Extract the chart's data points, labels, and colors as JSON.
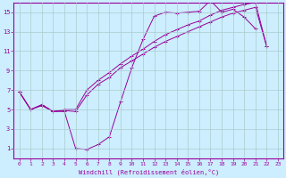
{
  "bg_color": "#cceeff",
  "grid_color": "#aacccc",
  "line_color": "#990099",
  "xlabel": "Windchill (Refroidissement éolien,°C)",
  "xlim": [
    -0.5,
    23.5
  ],
  "ylim": [
    0,
    16
  ],
  "xticks": [
    0,
    1,
    2,
    3,
    4,
    5,
    6,
    7,
    8,
    9,
    10,
    11,
    12,
    13,
    14,
    15,
    16,
    17,
    18,
    19,
    20,
    21,
    22,
    23
  ],
  "yticks": [
    1,
    3,
    5,
    7,
    9,
    11,
    13,
    15
  ],
  "line1_x": [
    0,
    1,
    2,
    3,
    4,
    5,
    6,
    7,
    8,
    9,
    10,
    11,
    12,
    13,
    14,
    15,
    16,
    17,
    18,
    19,
    20,
    21
  ],
  "line1_y": [
    6.8,
    5.0,
    5.5,
    4.8,
    4.8,
    1.0,
    0.9,
    1.4,
    2.2,
    5.8,
    9.3,
    12.2,
    14.6,
    15.0,
    14.9,
    15.0,
    15.1,
    16.2,
    15.0,
    15.3,
    14.5,
    13.3
  ],
  "line2_x": [
    0,
    1,
    2,
    3,
    4,
    5,
    6,
    7,
    8,
    9,
    10,
    11,
    12,
    13,
    14,
    15,
    16,
    17,
    18,
    19,
    20,
    21,
    22
  ],
  "line2_y": [
    6.8,
    5.0,
    5.4,
    4.8,
    4.9,
    4.8,
    6.5,
    7.6,
    8.3,
    9.3,
    10.0,
    10.7,
    11.4,
    12.0,
    12.5,
    13.0,
    13.5,
    14.0,
    14.5,
    14.9,
    15.2,
    15.5,
    11.5
  ],
  "line3_x": [
    0,
    1,
    2,
    3,
    4,
    5,
    6,
    7,
    8,
    9,
    10,
    11,
    12,
    13,
    14,
    15,
    16,
    17,
    18,
    19,
    20,
    21,
    22
  ],
  "line3_y": [
    6.8,
    5.0,
    5.5,
    4.8,
    5.0,
    5.0,
    7.0,
    8.0,
    8.8,
    9.7,
    10.5,
    11.2,
    12.0,
    12.7,
    13.2,
    13.7,
    14.1,
    14.7,
    15.2,
    15.5,
    15.8,
    16.0,
    11.5
  ]
}
